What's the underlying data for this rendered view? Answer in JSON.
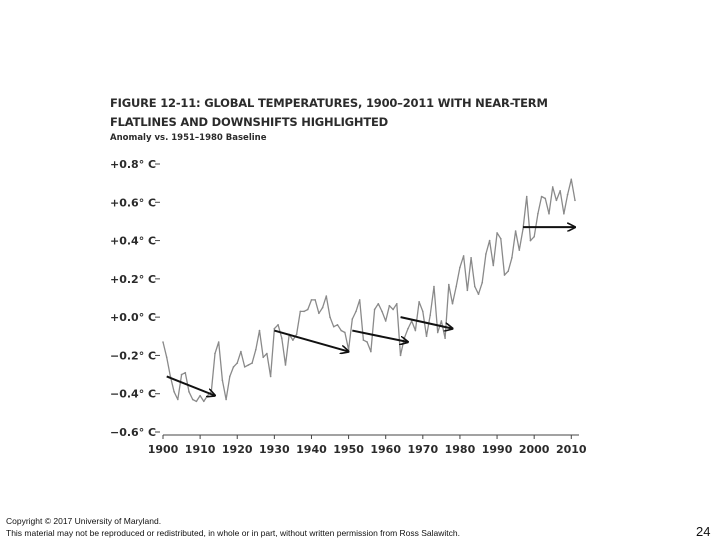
{
  "chart_data": {
    "type": "line",
    "title_line1": "FIGURE 12-11: GLOBAL TEMPERATURES, 1900–2011 WITH NEAR-TERM",
    "title_line2": "FLATLINES AND DOWNSHIFTS HIGHLIGHTED",
    "subtitle": "Anomaly vs. 1951–1980 Baseline",
    "xlabel": "",
    "ylabel": "",
    "xlim": [
      1900,
      2011
    ],
    "ylim": [
      -0.6,
      0.8
    ],
    "x_ticks": [
      1900,
      1910,
      1920,
      1930,
      1940,
      1950,
      1960,
      1970,
      1980,
      1990,
      2000,
      2010
    ],
    "y_ticks": [
      {
        "value": 0.8,
        "label": "+0.8° C"
      },
      {
        "value": 0.6,
        "label": "+0.6° C"
      },
      {
        "value": 0.4,
        "label": "+0.4° C"
      },
      {
        "value": 0.2,
        "label": "+0.2° C"
      },
      {
        "value": 0.0,
        "label": "+0.0° C"
      },
      {
        "value": -0.2,
        "label": "−0.2° C"
      },
      {
        "value": -0.4,
        "label": "−0.4° C"
      },
      {
        "value": -0.6,
        "label": "−0.6° C"
      }
    ],
    "grid": false,
    "series": [
      {
        "line_color": "#8a8a8a",
        "x": [
          1900,
          1901,
          1902,
          1903,
          1904,
          1905,
          1906,
          1907,
          1908,
          1909,
          1910,
          1911,
          1912,
          1913,
          1914,
          1915,
          1916,
          1917,
          1918,
          1919,
          1920,
          1921,
          1922,
          1923,
          1924,
          1925,
          1926,
          1927,
          1928,
          1929,
          1930,
          1931,
          1932,
          1933,
          1934,
          1935,
          1936,
          1937,
          1938,
          1939,
          1940,
          1941,
          1942,
          1943,
          1944,
          1945,
          1946,
          1947,
          1948,
          1949,
          1950,
          1951,
          1952,
          1953,
          1954,
          1955,
          1956,
          1957,
          1958,
          1959,
          1960,
          1961,
          1962,
          1963,
          1964,
          1965,
          1966,
          1967,
          1968,
          1969,
          1970,
          1971,
          1972,
          1973,
          1974,
          1975,
          1976,
          1977,
          1978,
          1979,
          1980,
          1981,
          1982,
          1983,
          1984,
          1985,
          1986,
          1987,
          1988,
          1989,
          1990,
          1991,
          1992,
          1993,
          1994,
          1995,
          1996,
          1997,
          1998,
          1999,
          2000,
          2001,
          2002,
          2003,
          2004,
          2005,
          2006,
          2007,
          2008,
          2009,
          2010,
          2011
        ],
        "values": [
          -0.13,
          -0.21,
          -0.31,
          -0.39,
          -0.43,
          -0.3,
          -0.29,
          -0.39,
          -0.43,
          -0.44,
          -0.41,
          -0.44,
          -0.41,
          -0.39,
          -0.19,
          -0.13,
          -0.33,
          -0.43,
          -0.31,
          -0.26,
          -0.24,
          -0.18,
          -0.26,
          -0.25,
          -0.24,
          -0.17,
          -0.07,
          -0.21,
          -0.19,
          -0.31,
          -0.06,
          -0.04,
          -0.11,
          -0.25,
          -0.09,
          -0.12,
          -0.09,
          0.03,
          0.03,
          0.04,
          0.09,
          0.09,
          0.02,
          0.05,
          0.11,
          0.0,
          -0.05,
          -0.04,
          -0.07,
          -0.08,
          -0.17,
          -0.01,
          0.03,
          0.09,
          -0.12,
          -0.13,
          -0.18,
          0.04,
          0.07,
          0.03,
          -0.02,
          0.06,
          0.04,
          0.07,
          -0.2,
          -0.11,
          -0.06,
          -0.02,
          -0.07,
          0.08,
          0.03,
          -0.1,
          0.01,
          0.16,
          -0.08,
          -0.02,
          -0.11,
          0.17,
          0.07,
          0.16,
          0.26,
          0.32,
          0.14,
          0.31,
          0.16,
          0.12,
          0.18,
          0.33,
          0.4,
          0.27,
          0.44,
          0.41,
          0.22,
          0.24,
          0.31,
          0.45,
          0.35,
          0.46,
          0.63,
          0.4,
          0.42,
          0.54,
          0.63,
          0.62,
          0.54,
          0.68,
          0.61,
          0.66,
          0.54,
          0.64,
          0.72,
          0.61
        ]
      }
    ],
    "annotations": [
      {
        "type": "arrow",
        "from": [
          1901,
          -0.31
        ],
        "to": [
          1914,
          -0.41
        ]
      },
      {
        "type": "arrow",
        "from": [
          1930,
          -0.07
        ],
        "to": [
          1950,
          -0.18
        ]
      },
      {
        "type": "arrow",
        "from": [
          1951,
          -0.07
        ],
        "to": [
          1966,
          -0.13
        ]
      },
      {
        "type": "arrow",
        "from": [
          1964,
          0.0
        ],
        "to": [
          1978,
          -0.06
        ]
      },
      {
        "type": "arrow",
        "from": [
          1997,
          0.47
        ],
        "to": [
          2011,
          0.47
        ]
      }
    ]
  },
  "footer": {
    "line1": "Copyright © 2017 University of Maryland.",
    "line2": "This material may not be reproduced or redistributed, in whole or in part, without written permission from Ross Salawitch."
  },
  "page_number": "24"
}
